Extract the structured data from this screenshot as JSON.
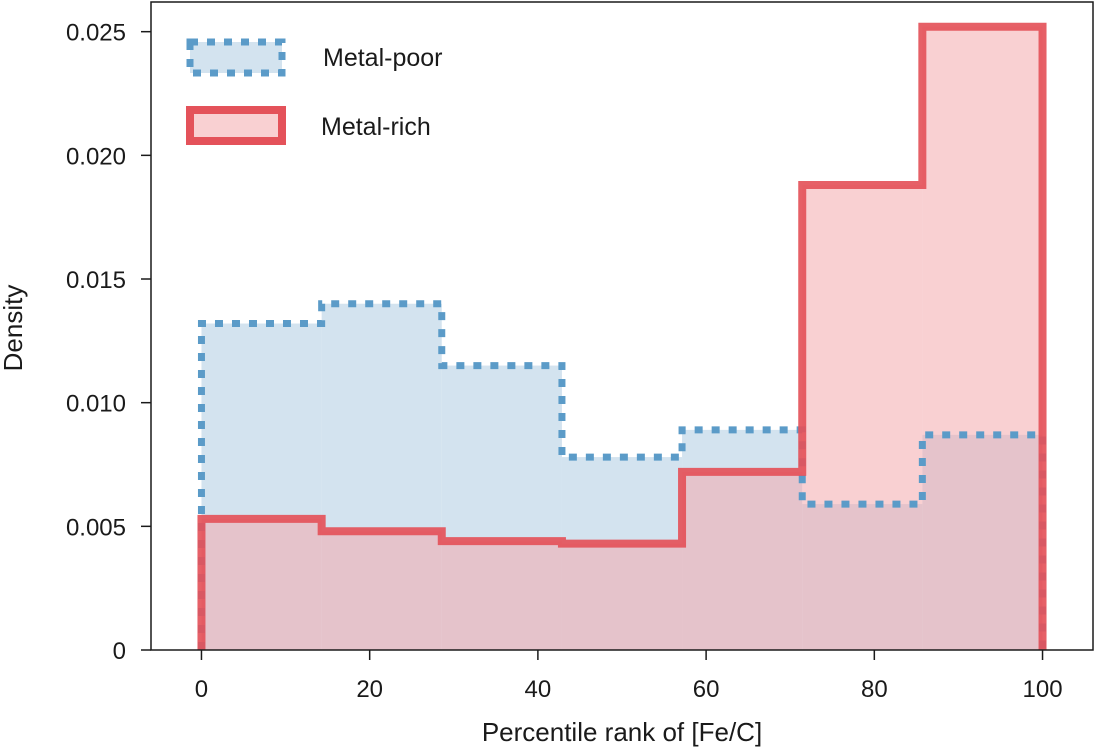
{
  "chart_data": {
    "type": "histogram",
    "title": "",
    "xlabel": "Percentile rank of [Fe/C]",
    "ylabel": "Density",
    "xlim": [
      -6,
      106
    ],
    "ylim": [
      0,
      0.0262
    ],
    "xticks": [
      0,
      20,
      40,
      60,
      80,
      100
    ],
    "xtick_labels": [
      "0",
      "20",
      "40",
      "60",
      "80",
      "100"
    ],
    "yticks": [
      0,
      0.005,
      0.01,
      0.015,
      0.02,
      0.025
    ],
    "ytick_labels": [
      "0",
      "0.005",
      "0.010",
      "0.015",
      "0.020",
      "0.025"
    ],
    "bin_edges": [
      0,
      14.29,
      28.57,
      42.86,
      57.14,
      71.43,
      85.71,
      100
    ],
    "grid": false,
    "legend_position": "top-left",
    "series": [
      {
        "name": "Metal-poor",
        "values": [
          0.0132,
          0.014,
          0.0115,
          0.0078,
          0.0089,
          0.0059,
          0.0087
        ],
        "line_style": "dotted",
        "stroke": "#5b9bc8",
        "fill": "#c6dbea"
      },
      {
        "name": "Metal-rich",
        "values": [
          0.0053,
          0.0048,
          0.0044,
          0.0043,
          0.0072,
          0.0188,
          0.0252
        ],
        "line_style": "solid",
        "stroke": "#e4525a",
        "fill": "#f4a9ad"
      }
    ]
  }
}
